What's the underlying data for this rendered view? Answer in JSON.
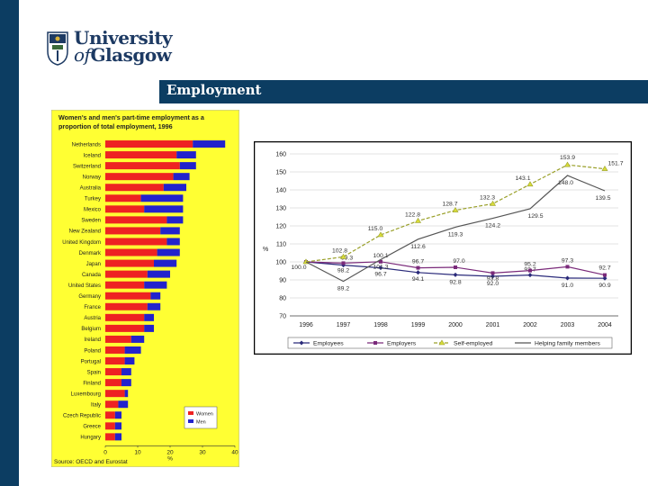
{
  "header": {
    "logo_line1": "University",
    "logo_line2_prefix": "of",
    "logo_line2": "Glasgow",
    "title": "Employment"
  },
  "colors": {
    "sidebar": "#0c3d62",
    "title_bar": "#0c3d62",
    "women": "#ee2222",
    "men": "#2222cc",
    "left_bg": "#ffff33",
    "employees": "#2a2a7a",
    "employers": "#7a2a7a",
    "self_employed": "#9aa02a",
    "helping": "#555555"
  },
  "chart_data": [
    {
      "type": "bar",
      "orientation": "horizontal",
      "stacked": true,
      "title_line1": "Women's and men's part-time employment as a",
      "title_line2": "proportion of total employment, 1996",
      "categories": [
        "Netherlands",
        "Iceland",
        "Switzerland",
        "Norway",
        "Australia",
        "Turkey",
        "Mexico",
        "Sweden",
        "New Zealand",
        "United Kingdom",
        "Denmark",
        "Japan",
        "Canada",
        "United States",
        "Germany",
        "France",
        "Austria",
        "Belgium",
        "Ireland",
        "Poland",
        "Portugal",
        "Spain",
        "Finland",
        "Luxembourg",
        "Italy",
        "Czech Republic",
        "Greece",
        "Hungary"
      ],
      "series": [
        {
          "name": "Women",
          "values": [
            27,
            22,
            23,
            21,
            18,
            11,
            12,
            19,
            17,
            19,
            16,
            15,
            13,
            12,
            14,
            13,
            12,
            12,
            8,
            6,
            6,
            5,
            5,
            6,
            4,
            3,
            3,
            3
          ]
        },
        {
          "name": "Men",
          "values": [
            10,
            6,
            5,
            5,
            7,
            13,
            12,
            5,
            6,
            4,
            7,
            7,
            7,
            7,
            3,
            4,
            3,
            3,
            4,
            5,
            3,
            3,
            3,
            1,
            3,
            2,
            2,
            2
          ]
        }
      ],
      "xticks": [
        "0",
        "10",
        "20",
        "30",
        "40"
      ],
      "xlim": [
        0,
        40
      ],
      "xlabel": "%",
      "legend": [
        "Women",
        "Men"
      ],
      "legend_position": "bottom-right",
      "source": "Source: OECD and Eurostat"
    },
    {
      "type": "line",
      "x": [
        "1996",
        "1997",
        "1998",
        "1999",
        "2000",
        "2001",
        "2002",
        "2003",
        "2004"
      ],
      "ylim": [
        70,
        160
      ],
      "yticks": [
        "70",
        "80",
        "90",
        "100",
        "110",
        "120",
        "130",
        "140",
        "150",
        "160"
      ],
      "ylabel": "%",
      "grid": "horizontal",
      "legend_position": "bottom",
      "series": [
        {
          "name": "Employees",
          "values": [
            100.0,
            98.2,
            96.7,
            94.1,
            92.8,
            92.0,
            92.7,
            91.0,
            90.9
          ],
          "labels": [
            "100.0",
            "98.2",
            "96.7",
            "94.1",
            "92.8",
            "92.0",
            "92.7",
            "91.0",
            "90.9"
          ]
        },
        {
          "name": "Employers",
          "values": [
            100.0,
            99.3,
            100.1,
            96.7,
            97.0,
            93.8,
            95.2,
            97.3,
            92.7
          ],
          "labels": [
            "",
            "99.3",
            "100.1",
            "96.7",
            "97.0",
            "93.8",
            "95.2",
            "97.3",
            "92.7"
          ]
        },
        {
          "name": "Self-employed",
          "values": [
            100.0,
            102.8,
            115.0,
            122.8,
            128.7,
            132.3,
            143.1,
            153.9,
            151.7
          ],
          "labels": [
            "",
            "102.8",
            "115.0",
            "122.8",
            "128.7",
            "132.3",
            "143.1",
            "153.9",
            "151.7"
          ]
        },
        {
          "name": "Helping family members",
          "values": [
            100.0,
            89.2,
            101.3,
            112.6,
            119.3,
            124.2,
            129.5,
            148.0,
            139.5
          ],
          "labels": [
            "",
            "89.2",
            "101.3",
            "112.6",
            "119.3",
            "124.2",
            "129.5",
            "148.0",
            "139.5"
          ]
        }
      ]
    }
  ]
}
